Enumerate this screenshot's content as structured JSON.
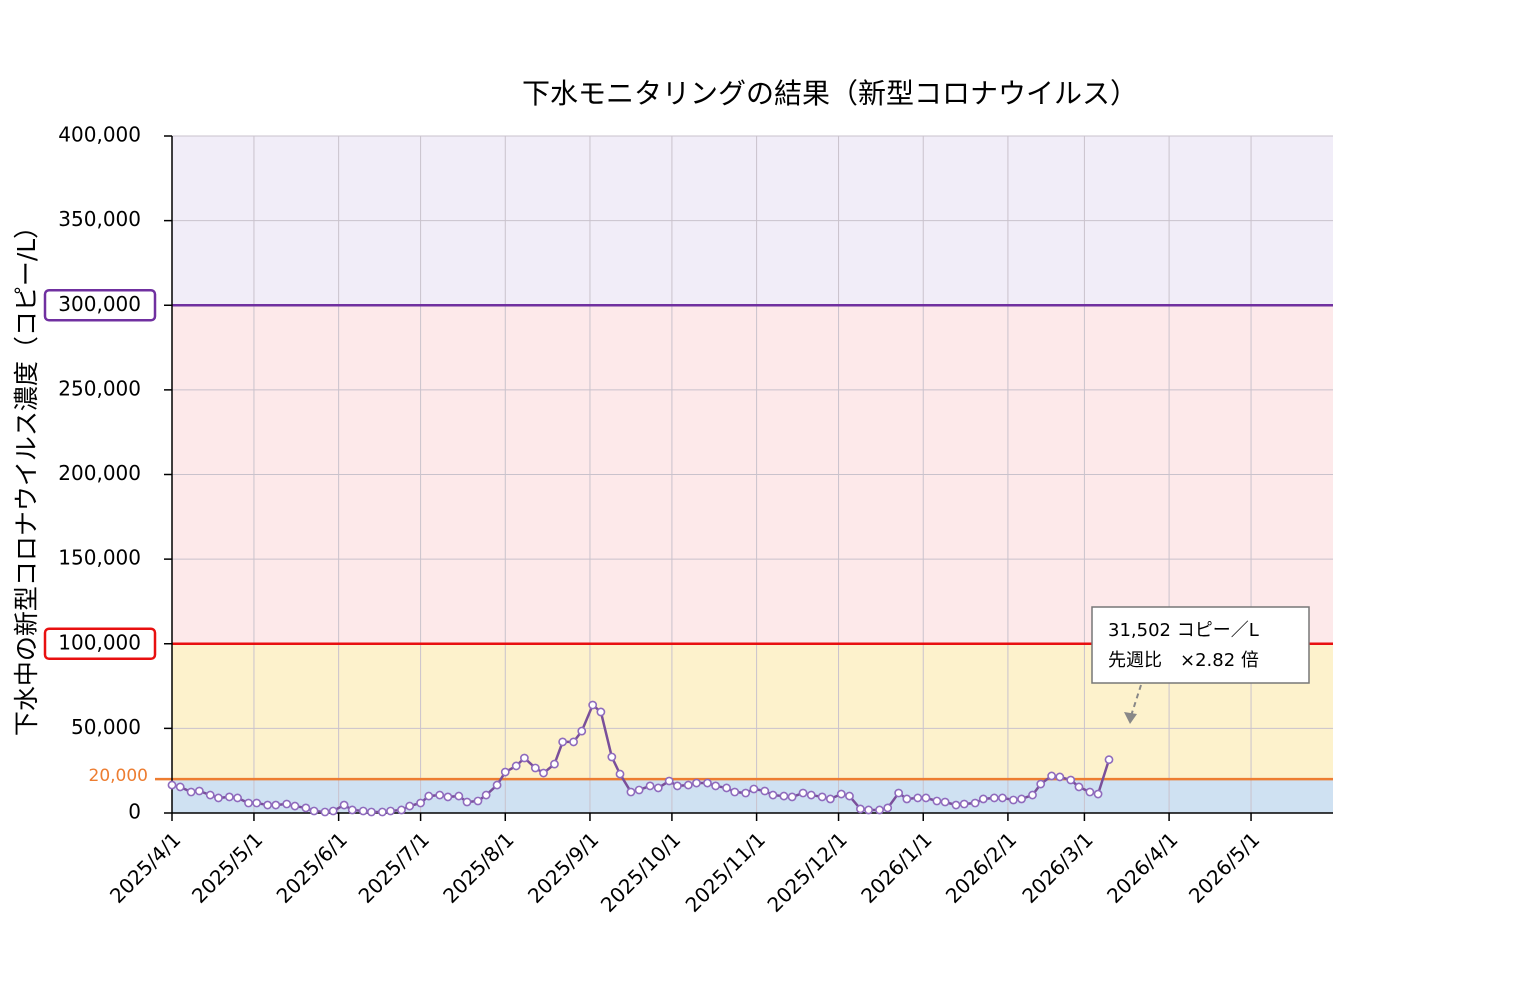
{
  "chart_data": {
    "type": "line",
    "title": "下水モニタリングの結果（新型コロナウイルス）",
    "y_label": "下水中の新型コロナウイルス濃度（コピー/L）",
    "x": [
      "2025/4/1",
      "2025/4/4",
      "2025/4/8",
      "2025/4/11",
      "2025/4/15",
      "2025/4/18",
      "2025/4/22",
      "2025/4/25",
      "2025/4/29",
      "2025/5/2",
      "2025/5/6",
      "2025/5/9",
      "2025/5/13",
      "2025/5/16",
      "2025/5/20",
      "2025/5/23",
      "2025/5/27",
      "2025/5/30",
      "2025/6/3",
      "2025/6/6",
      "2025/6/10",
      "2025/6/13",
      "2025/6/17",
      "2025/6/20",
      "2025/6/24",
      "2025/6/27",
      "2025/7/1",
      "2025/7/4",
      "2025/7/8",
      "2025/7/11",
      "2025/7/15",
      "2025/7/18",
      "2025/7/22",
      "2025/7/25",
      "2025/7/29",
      "2025/8/1",
      "2025/8/5",
      "2025/8/8",
      "2025/8/12",
      "2025/8/15",
      "2025/8/19",
      "2025/8/22",
      "2025/8/26",
      "2025/8/29",
      "2025/9/2",
      "2025/9/5",
      "2025/9/9",
      "2025/9/12",
      "2025/9/16",
      "2025/9/19",
      "2025/9/23",
      "2025/9/26",
      "2025/9/30",
      "2025/10/3",
      "2025/10/7",
      "2025/10/10",
      "2025/10/14",
      "2025/10/17",
      "2025/10/21",
      "2025/10/24",
      "2025/10/28",
      "2025/10/31",
      "2025/11/4",
      "2025/11/7",
      "2025/11/11",
      "2025/11/14",
      "2025/11/18",
      "2025/11/21",
      "2025/11/25",
      "2025/11/28",
      "2025/12/2",
      "2025/12/5",
      "2025/12/9",
      "2025/12/12",
      "2025/12/16",
      "2025/12/19",
      "2025/12/23",
      "2025/12/26",
      "2025/12/30",
      "2026/1/2",
      "2026/1/6",
      "2026/1/9",
      "2026/1/13",
      "2026/1/16",
      "2026/1/20",
      "2026/1/23",
      "2026/1/27",
      "2026/1/30",
      "2026/2/3",
      "2026/2/6",
      "2026/2/10",
      "2026/2/13",
      "2026/2/17",
      "2026/2/20",
      "2026/2/24",
      "2026/2/27",
      "2026/3/3",
      "2026/3/6",
      "2026/3/10"
    ],
    "series": [
      {
        "color": "#7a4f9a",
        "marker_color": "#8f6bbd",
        "values": [
          16500,
          15400,
          12400,
          13000,
          10600,
          8900,
          9500,
          8900,
          5900,
          5900,
          4700,
          4700,
          5300,
          4100,
          3000,
          1200,
          600,
          1200,
          4700,
          1800,
          1200,
          600,
          600,
          1200,
          1800,
          4100,
          5900,
          10000,
          10600,
          9500,
          10000,
          6500,
          7100,
          10600,
          16500,
          24200,
          27800,
          32500,
          26600,
          23600,
          28900,
          42000,
          42000,
          48400,
          63800,
          59700,
          33100,
          23000,
          12400,
          13600,
          16000,
          14800,
          18900,
          16000,
          16500,
          17700,
          17700,
          16000,
          14800,
          12400,
          11800,
          14200,
          13000,
          10600,
          10000,
          9500,
          11800,
          10600,
          9500,
          8300,
          11200,
          10000,
          2400,
          1800,
          1800,
          3000,
          11800,
          8300,
          8900,
          8900,
          7100,
          6500,
          4700,
          5300,
          5900,
          8300,
          8900,
          8900,
          7700,
          8300,
          10600,
          17100,
          21900,
          21300,
          19500,
          15400,
          12400,
          11200,
          31502
        ]
      }
    ],
    "xlim": [
      "2025/4/1",
      "2026/5/31"
    ],
    "xticks": [
      "2025/4/1",
      "2025/5/1",
      "2025/6/1",
      "2025/7/1",
      "2025/8/1",
      "2025/9/1",
      "2025/10/1",
      "2025/11/1",
      "2025/12/1",
      "2026/1/1",
      "2026/2/1",
      "2026/3/1",
      "2026/4/1",
      "2026/5/1"
    ],
    "ylim": [
      0,
      400000
    ],
    "yticks": [
      0,
      {
        "value": 50000,
        "label": "50,000"
      },
      {
        "value": 100000,
        "label": "100,000"
      },
      {
        "value": 150000,
        "label": "150,000"
      },
      {
        "value": 200000,
        "label": "200,000"
      },
      {
        "value": 250000,
        "label": "250,000"
      },
      {
        "value": 300000,
        "label": "300,000"
      },
      {
        "value": 350000,
        "label": "350,000"
      },
      {
        "value": 400000,
        "label": "400,000"
      }
    ],
    "grid": true,
    "bands": [
      {
        "from": 0,
        "to": 20000,
        "color": "#cfe1f2"
      },
      {
        "from": 20000,
        "to": 100000,
        "color": "#fdf2cc"
      },
      {
        "from": 100000,
        "to": 300000,
        "color": "#fde9ea"
      },
      {
        "from": 300000,
        "to": 400000,
        "color": "#f1edf8"
      }
    ],
    "thresholds": [
      {
        "value": 20000,
        "label": "20,000",
        "color": "#ed7d31"
      },
      {
        "value": 100000,
        "color": "#e81010",
        "boxed": true
      },
      {
        "value": 300000,
        "color": "#7030a0",
        "boxed": true
      }
    ],
    "annotation": {
      "lines": [
        "31,502 コピー／L",
        "先週比　×2.82 倍"
      ]
    }
  }
}
